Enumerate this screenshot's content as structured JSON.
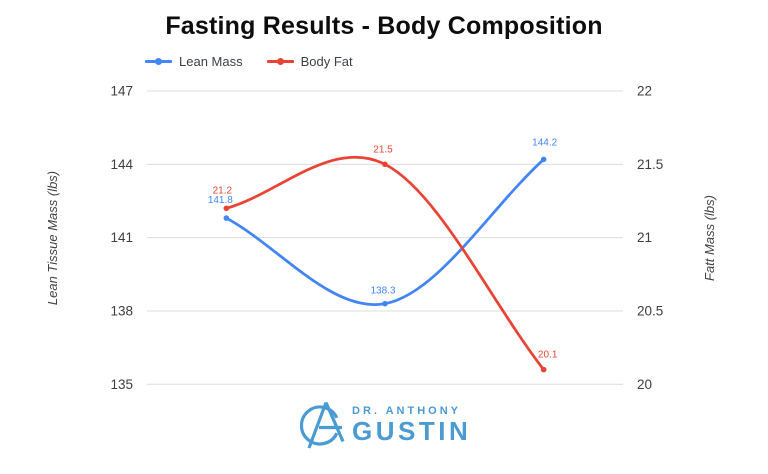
{
  "chart_data": {
    "type": "line",
    "title": "Fasting Results - Body Composition",
    "smooth": true,
    "grid": true,
    "legend_position": "top-left",
    "x_axis_labels_visible": false,
    "num_points": 3,
    "series": [
      {
        "name": "Lean Mass",
        "axis": "left",
        "color": "#4285f4",
        "values": [
          141.8,
          138.3,
          144.2
        ],
        "point_labels": [
          "141.8",
          "138.3",
          "144.2"
        ],
        "label_offsets": [
          [
            -6,
            -15
          ],
          [
            -2,
            -10
          ],
          [
            1,
            -14
          ]
        ]
      },
      {
        "name": "Body Fat",
        "axis": "right",
        "color": "#ea4335",
        "values": [
          21.2,
          21.5,
          20.1
        ],
        "point_labels": [
          "21.2",
          "21.5",
          "20.1"
        ],
        "label_offsets": [
          [
            -4,
            -15
          ],
          [
            -2,
            -12
          ],
          [
            4,
            -12
          ]
        ]
      }
    ],
    "left_axis": {
      "title": "Lean Tissue Mass (lbs)",
      "min": 135,
      "max": 147,
      "ticks": [
        147,
        144,
        141,
        138,
        135
      ]
    },
    "right_axis": {
      "title": "Fatt Mass (lbs)",
      "min": 20,
      "max": 22,
      "ticks": [
        22,
        21.5,
        21,
        20.5,
        20
      ]
    }
  },
  "logo": {
    "top_text": "DR. ANTHONY",
    "name": "GUSTIN",
    "color": "#4a9ad3"
  }
}
